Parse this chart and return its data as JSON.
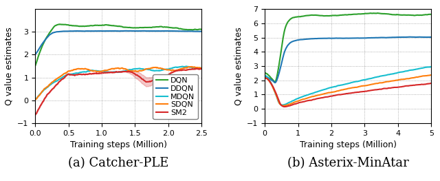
{
  "left_caption": "(a) Catcher-PLE",
  "right_caption": "(b) Asterix-MinAtar",
  "ylabel": "Q value estimates",
  "xlabel": "Training steps (Million)",
  "colors": {
    "DQN": "#2ca02c",
    "DDQN": "#1f77b4",
    "MDQN": "#17becf",
    "SDQN": "#ff7f0e",
    "SM2": "#d62728"
  },
  "legend_labels": [
    "DQN",
    "DDQN",
    "MDQN",
    "SDQN",
    "SM2"
  ],
  "left_xlim": [
    0,
    2.5
  ],
  "left_ylim": [
    -1,
    4
  ],
  "left_yticks": [
    -1,
    0,
    1,
    2,
    3
  ],
  "left_xticks": [
    0.0,
    0.5,
    1.0,
    1.5,
    2.0,
    2.5
  ],
  "right_xlim": [
    0,
    5
  ],
  "right_ylim": [
    -1,
    7
  ],
  "right_yticks": [
    -1,
    0,
    1,
    2,
    3,
    4,
    5,
    6,
    7
  ],
  "right_xticks": [
    0,
    1,
    2,
    3,
    4,
    5
  ],
  "caption_fontsize": 13,
  "label_fontsize": 9,
  "tick_fontsize": 8,
  "legend_fontsize": 8,
  "line_width": 1.5
}
